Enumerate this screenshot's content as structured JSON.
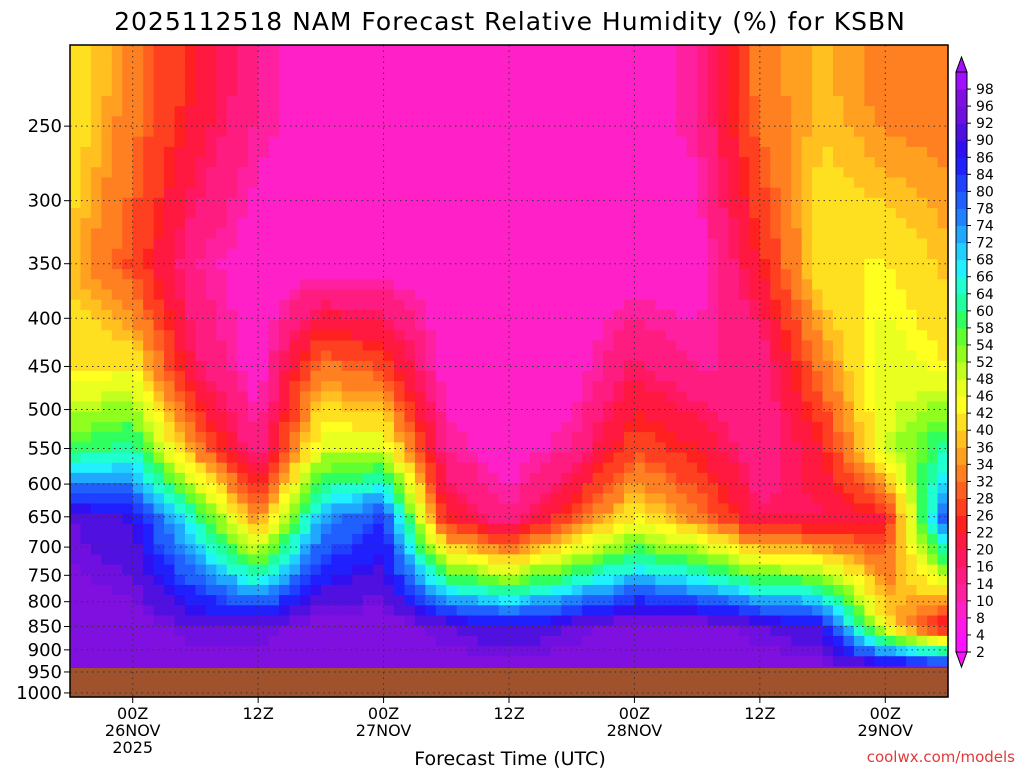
{
  "chart_data": {
    "type": "heatmap",
    "title": "2025112518 NAM Forecast Relative Humidity (%) for KSBN",
    "xlabel": "Forecast Time (UTC)",
    "ylabel": "",
    "y_scale": "pressure-log",
    "y_ticks": [
      250,
      300,
      350,
      400,
      450,
      500,
      550,
      600,
      650,
      700,
      750,
      800,
      850,
      900,
      950,
      1000
    ],
    "y_range": [
      205,
      1010
    ],
    "x_ticks": [
      {
        "hour": 6,
        "lines": [
          "00Z",
          "26NOV",
          "2025"
        ]
      },
      {
        "hour": 18,
        "lines": [
          "12Z"
        ]
      },
      {
        "hour": 30,
        "lines": [
          "00Z",
          "27NOV"
        ]
      },
      {
        "hour": 42,
        "lines": [
          "12Z"
        ]
      },
      {
        "hour": 54,
        "lines": [
          "00Z",
          "28NOV"
        ]
      },
      {
        "hour": 66,
        "lines": [
          "12Z"
        ]
      },
      {
        "hour": 78,
        "lines": [
          "00Z",
          "29NOV"
        ]
      }
    ],
    "x_range_hours": [
      0,
      84
    ],
    "grid": true,
    "colorbar_levels": [
      2,
      4,
      8,
      10,
      14,
      16,
      20,
      22,
      26,
      28,
      32,
      34,
      36,
      40,
      42,
      46,
      48,
      52,
      54,
      58,
      60,
      64,
      66,
      68,
      72,
      74,
      78,
      80,
      84,
      86,
      90,
      92,
      96,
      98
    ],
    "colorbar_colors": [
      "#ff10ff",
      "#ff18e8",
      "#ff20c8",
      "#ff20a0",
      "#ff1c80",
      "#ff1860",
      "#ff1840",
      "#ff2020",
      "#ff4020",
      "#ff6020",
      "#ff8020",
      "#ffa020",
      "#ffc020",
      "#ffe020",
      "#ffff20",
      "#e8ff20",
      "#c0ff20",
      "#90ff20",
      "#60ff30",
      "#30ff60",
      "#20ffa0",
      "#20ffd0",
      "#20f0ff",
      "#20d0ff",
      "#20a8ff",
      "#2080ff",
      "#2060ff",
      "#2040ff",
      "#2020ff",
      "#3010f0",
      "#5010e0",
      "#7010e0",
      "#8010e0",
      "#a010ff"
    ],
    "surface_color": "#a0522d",
    "profiles": [
      {
        "hour": 0,
        "rh": [
          40,
          35,
          40,
          55,
          90,
          95,
          95
        ]
      },
      {
        "hour": 6,
        "rh": [
          30,
          25,
          40,
          60,
          85,
          95,
          95
        ]
      },
      {
        "hour": 12,
        "rh": [
          20,
          10,
          15,
          30,
          60,
          90,
          95
        ]
      },
      {
        "hour": 18,
        "rh": [
          10,
          5,
          5,
          10,
          30,
          90,
          95
        ]
      },
      {
        "hour": 24,
        "rh": [
          5,
          5,
          30,
          45,
          70,
          95,
          95
        ]
      },
      {
        "hour": 30,
        "rh": [
          5,
          5,
          25,
          45,
          80,
          95,
          95
        ]
      },
      {
        "hour": 36,
        "rh": [
          5,
          5,
          5,
          10,
          20,
          90,
          95
        ]
      },
      {
        "hour": 42,
        "rh": [
          5,
          5,
          5,
          5,
          10,
          85,
          95
        ]
      },
      {
        "hour": 48,
        "rh": [
          5,
          5,
          5,
          10,
          25,
          90,
          95
        ]
      },
      {
        "hour": 54,
        "rh": [
          5,
          5,
          15,
          25,
          40,
          95,
          95
        ]
      },
      {
        "hour": 60,
        "rh": [
          10,
          5,
          10,
          20,
          30,
          95,
          95
        ]
      },
      {
        "hour": 66,
        "rh": [
          30,
          20,
          10,
          10,
          15,
          90,
          95
        ]
      },
      {
        "hour": 72,
        "rh": [
          35,
          40,
          30,
          20,
          15,
          85,
          95
        ]
      },
      {
        "hour": 78,
        "rh": [
          30,
          40,
          45,
          45,
          20,
          40,
          95
        ]
      },
      {
        "hour": 84,
        "rh": [
          30,
          35,
          40,
          60,
          80,
          15,
          95
        ]
      }
    ],
    "profile_levels": [
      230,
      350,
      450,
      550,
      650,
      850,
      950
    ]
  },
  "watermark": "coolwx.com/models"
}
